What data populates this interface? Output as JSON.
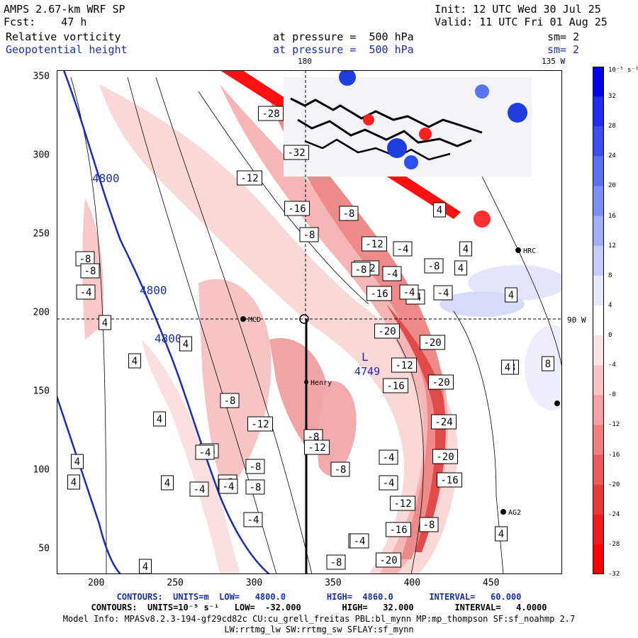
{
  "header": {
    "title_left": "AMPS 2.67-km WRF SP",
    "fcst": "Fcst:    47 h",
    "init": "Init: 12 UTC Wed 30 Jul 25",
    "valid": "Valid: 11 UTC Fri 01 Aug 25",
    "field1_name": "Relative vorticity",
    "field1_level": "at pressure =  500 hPa",
    "field1_sm": "sm= 2",
    "field2_name": "Geopotential height",
    "field2_level": "at pressure =  500 hPa",
    "field2_sm": "sm= 2"
  },
  "map_labels": {
    "lon_180": "180",
    "lon_135w": "135 W",
    "lon_90w": "90 W",
    "station_mcd": "MCD",
    "station_henry": "Henry",
    "station_hrc": "HRC",
    "station_ag2": "AG2",
    "low_letter": "L",
    "low_value": "4749"
  },
  "colors": {
    "geopotential_contour": "#1a2ea8",
    "negative_max": "#ff0000",
    "positive_max": "#0000ee"
  },
  "footer": {
    "contours1": "CONTOURS:  UNITS=m  LOW=   4800.0        HIGH=  4860.0       INTERVAL=   60.000",
    "contours2": "CONTOURS:  UNITS=10⁻⁵ s⁻¹   LOW=  -32.000        HIGH=   32.000        INTERVAL=   4.0000",
    "model_info": "Model Info: MPASv8.2.3-194-gf29cd82c CU:cu_grell_freitas PBL:bl_mynn MP:mp_thompson SF:sf_noahmp 2.7",
    "model_info2": "LW:rrtmg_lw SW:rrtmg_sw SFLAY:sf_mynn"
  },
  "chart_data": {
    "type": "heatmap",
    "x_ticks": [
      "200",
      "250",
      "300",
      "350",
      "400",
      "450"
    ],
    "y_ticks": [
      "50",
      "100",
      "150",
      "200",
      "250",
      "300",
      "350"
    ],
    "xlim": [
      175,
      495
    ],
    "ylim": [
      34,
      354
    ],
    "colorbar": {
      "units": "10⁻⁵ s⁻¹",
      "labels": [
        "32",
        "28",
        "24",
        "20",
        "16",
        "12",
        "8",
        "4",
        "0",
        "-4",
        "-8",
        "-12",
        "-16",
        "-20",
        "-24",
        "-28",
        "-32"
      ]
    },
    "geopotential_labels": [
      "4800",
      "4800",
      "4800"
    ],
    "vorticity_box_labels": [
      "-28",
      "-32",
      "-12",
      "-16",
      "-8",
      "-8",
      "-12",
      "-4",
      "-4",
      "-12",
      "-8",
      "-16",
      "-4",
      "-4",
      "-20",
      "-20",
      "-4",
      "-8",
      "-12",
      "-16",
      "-20",
      "-24",
      "-20",
      "-16",
      "-12",
      "-16",
      "-8",
      "-4",
      "-20",
      "-8",
      "-8",
      "-12",
      "-8",
      "-12",
      "-8",
      "-8",
      "-8",
      "-4",
      "-4",
      "-4",
      "-4",
      "-8",
      "-4",
      "-4",
      "-4",
      "-4",
      "-8",
      "-8",
      "-4",
      "4",
      "4",
      "4",
      "4",
      "4",
      "4",
      "4",
      "4",
      "8",
      "8",
      "4",
      "4",
      "4",
      "4",
      "4",
      "4"
    ]
  }
}
